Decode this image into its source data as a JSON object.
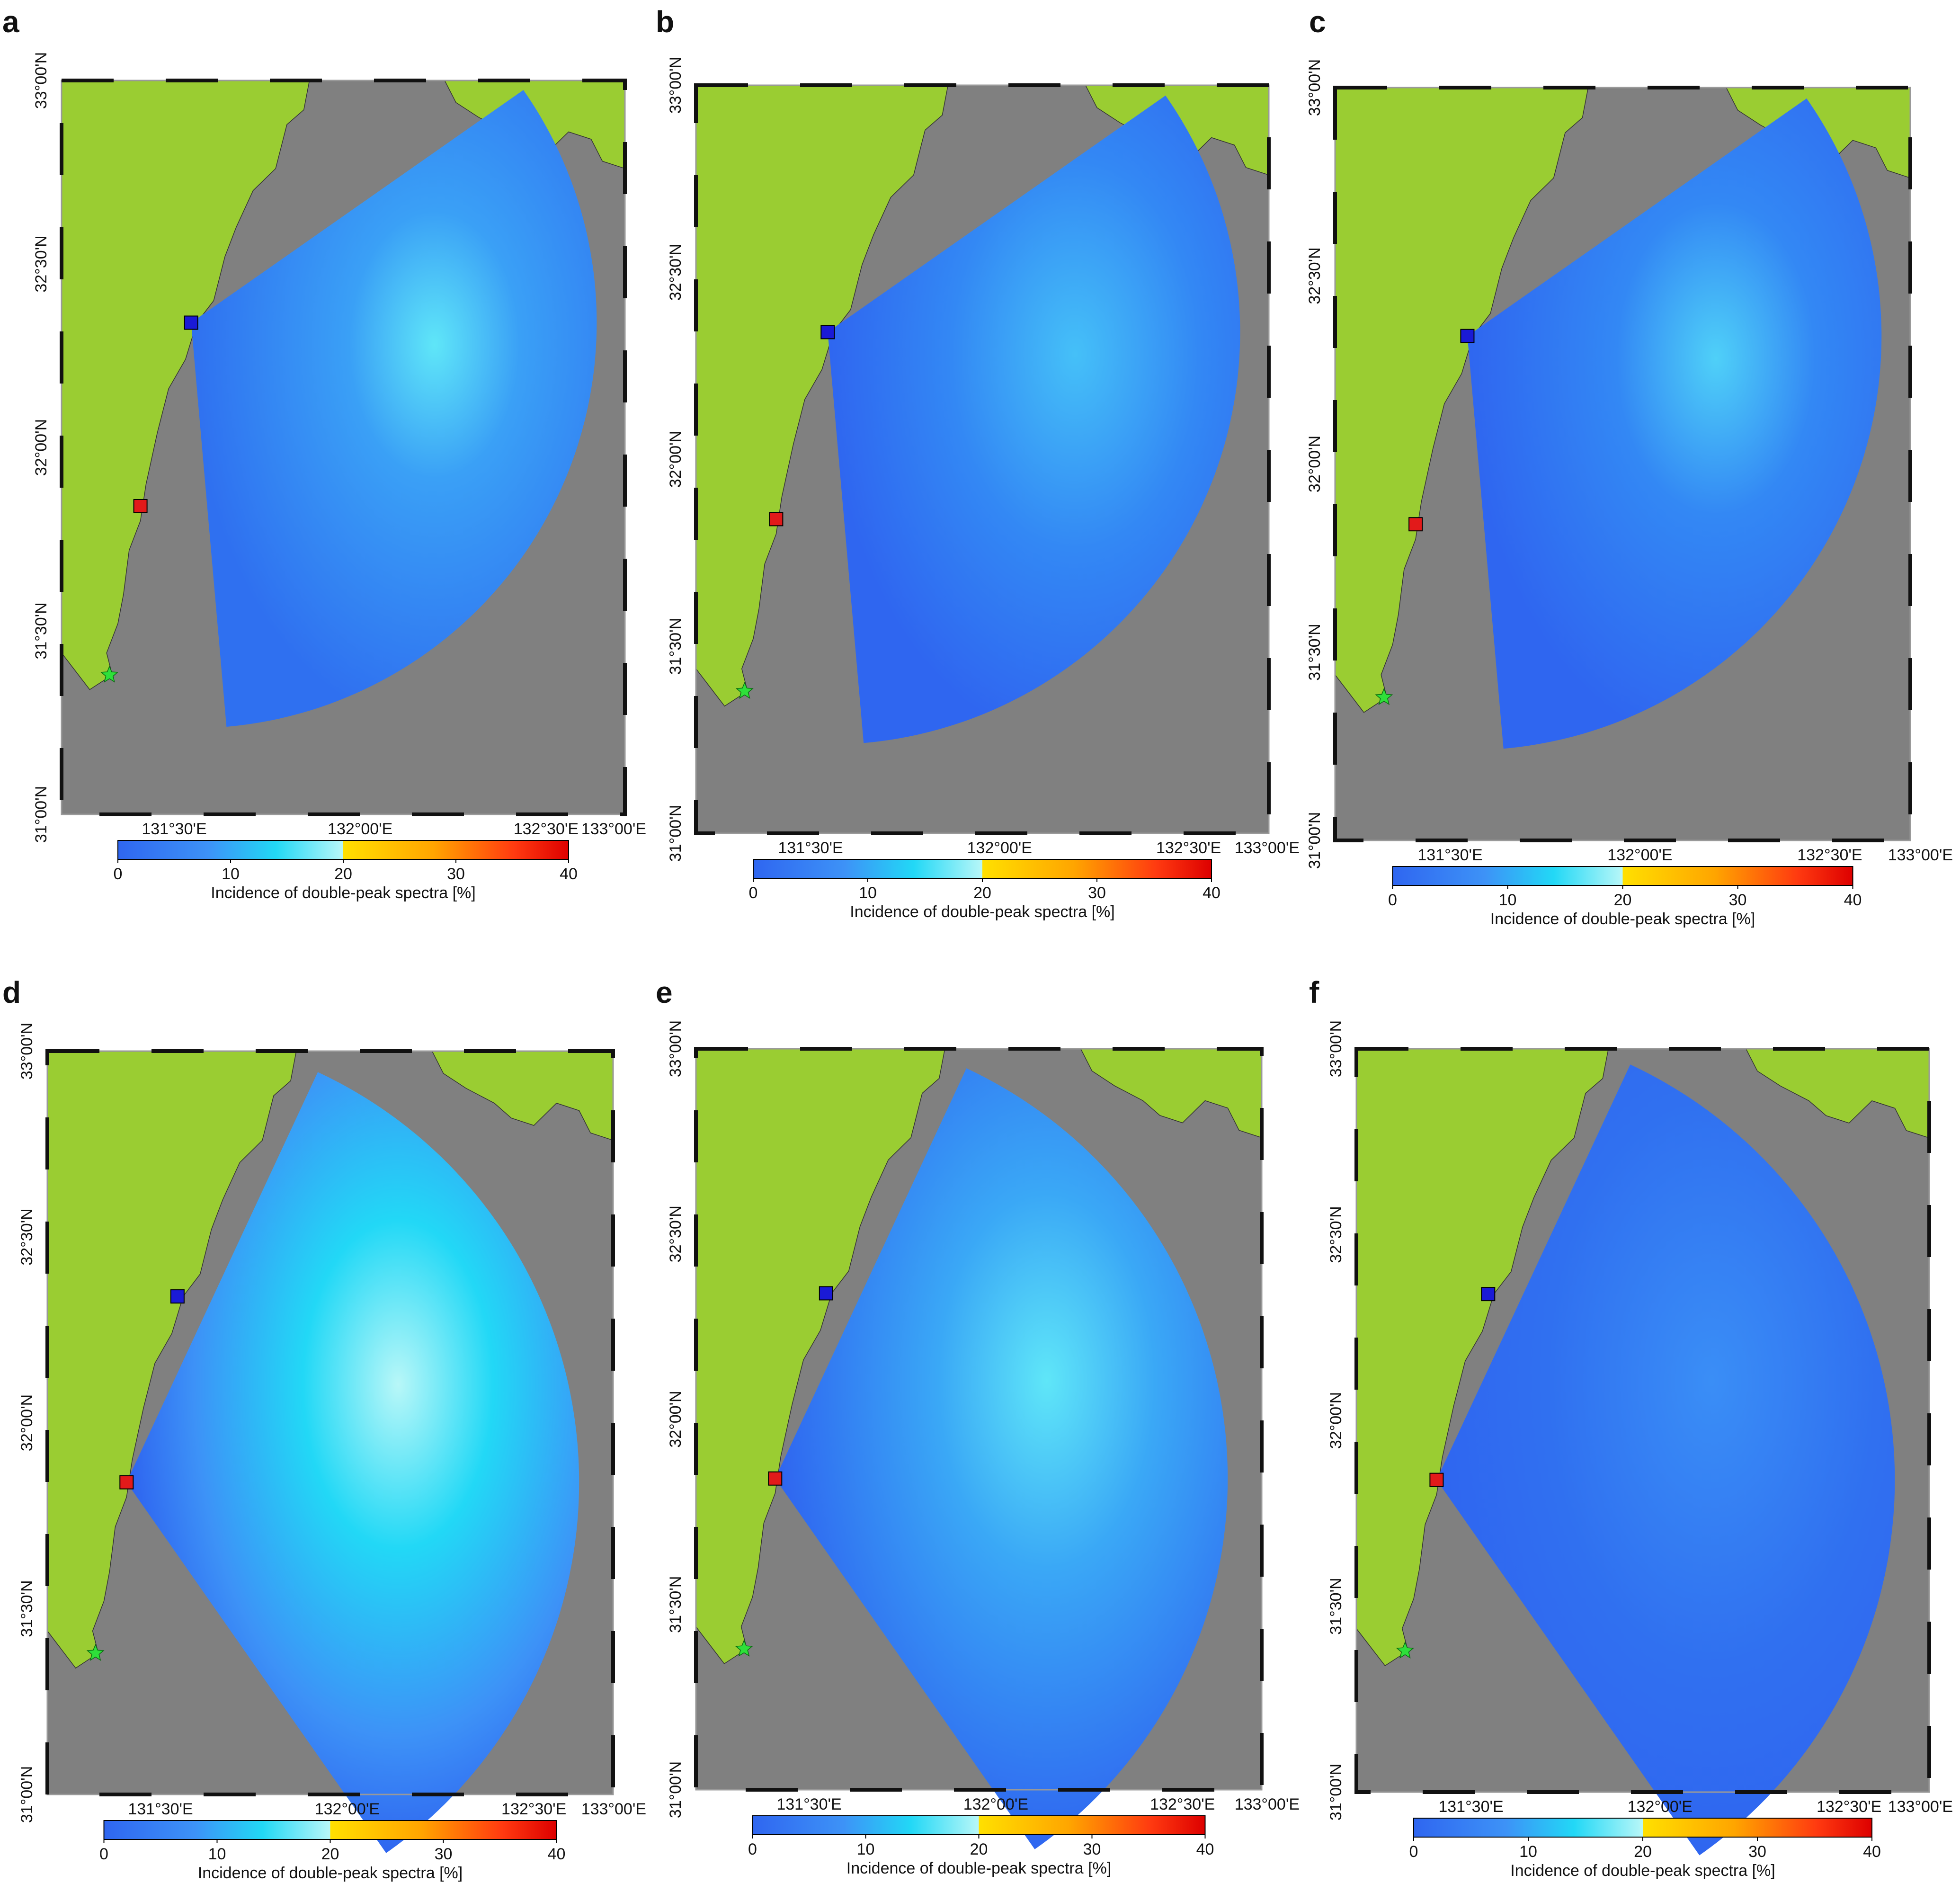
{
  "colors": {
    "land": "#9acd32",
    "sea": "#808080",
    "frame_dash": "#111111",
    "radar_blue": "#1a1ad6",
    "radar_red": "#e21a1a",
    "star": "#2ee03a",
    "colormap": [
      "#2f66f0",
      "#3d92f7",
      "#22d8f6",
      "#b8f7f8",
      "#ffe000",
      "#ffa500",
      "#ff3a10",
      "#dd0000"
    ]
  },
  "colorbar": {
    "ticks": [
      "0",
      "10",
      "20",
      "30",
      "40"
    ],
    "label": "Incidence of double-peak spectra [%]"
  },
  "axis": {
    "lon_labels": [
      "131°30'E",
      "132°00'E",
      "132°30'E",
      "133°00'E"
    ],
    "lat_labels": [
      "31°00'N",
      "31°30'N",
      "32°00'N",
      "32°30'N",
      "33°00'N"
    ]
  },
  "panels": [
    {
      "letter": "a",
      "origin": "blue",
      "shade": "top-right-cyan"
    },
    {
      "letter": "b",
      "origin": "blue",
      "shade": "mid-cyan"
    },
    {
      "letter": "c",
      "origin": "blue",
      "shade": "top-cyan"
    },
    {
      "letter": "d",
      "origin": "red",
      "shade": "center-bright"
    },
    {
      "letter": "e",
      "origin": "red",
      "shade": "center-cyan"
    },
    {
      "letter": "f",
      "origin": "red",
      "shade": "mostly-blue"
    }
  ]
}
